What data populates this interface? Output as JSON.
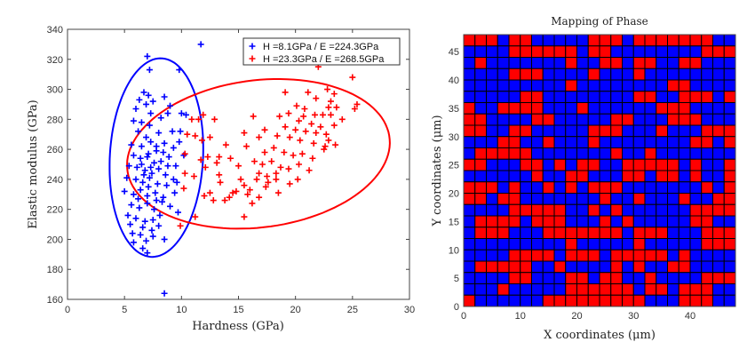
{
  "chart_data": [
    {
      "type": "scatter",
      "title": "",
      "xlabel": "Hardness (GPa)",
      "ylabel": "Elastic modulus (GPa)",
      "xlim": [
        0,
        30
      ],
      "ylim": [
        160,
        340
      ],
      "xticks": [
        "0",
        "5",
        "10",
        "15",
        "20",
        "25",
        "30"
      ],
      "yticks": [
        "160",
        "180",
        "200",
        "220",
        "240",
        "260",
        "280",
        "300",
        "320",
        "340"
      ],
      "legend_position": "top-right",
      "series": [
        {
          "name": "H =8.1GPa / E =224.3GPa",
          "color": "#0000ff",
          "marker": "+",
          "ellipse": {
            "cx": 7.8,
            "cy": 254.5,
            "ax": 4.0,
            "ay": -9.5,
            "bx": 0.95,
            "by": 65.5
          },
          "points": [
            [
              11.7,
              330
            ],
            [
              7,
              322
            ],
            [
              7.2,
              313
            ],
            [
              9.8,
              313
            ],
            [
              6.7,
              298
            ],
            [
              7.1,
              296
            ],
            [
              8.5,
              295
            ],
            [
              6.3,
              293
            ],
            [
              7.5,
              292
            ],
            [
              6.9,
              290
            ],
            [
              9.0,
              289
            ],
            [
              6.0,
              287
            ],
            [
              7.3,
              284
            ],
            [
              10.0,
              284
            ],
            [
              8.8,
              284
            ],
            [
              5.8,
              279
            ],
            [
              6.5,
              278
            ],
            [
              7.2,
              276
            ],
            [
              8.2,
              281
            ],
            [
              10.4,
              283
            ],
            [
              6.2,
              272
            ],
            [
              6.9,
              268
            ],
            [
              8.0,
              271
            ],
            [
              9.2,
              272
            ],
            [
              9.9,
              272
            ],
            [
              5.6,
              263
            ],
            [
              6.5,
              262
            ],
            [
              7.3,
              265
            ],
            [
              7.8,
              262
            ],
            [
              8.4,
              258
            ],
            [
              9.3,
              261
            ],
            [
              9.8,
              265
            ],
            [
              5.8,
              256
            ],
            [
              6.4,
              254
            ],
            [
              7.1,
              257
            ],
            [
              7.6,
              251
            ],
            [
              8.2,
              252
            ],
            [
              8.9,
              255
            ],
            [
              10.2,
              256
            ],
            [
              5.4,
              249
            ],
            [
              6.1,
              248
            ],
            [
              6.8,
              246
            ],
            [
              7.4,
              244
            ],
            [
              8.0,
              247
            ],
            [
              8.6,
              243
            ],
            [
              9.5,
              249
            ],
            [
              5.2,
              241
            ],
            [
              6.0,
              240
            ],
            [
              6.6,
              238
            ],
            [
              7.2,
              241
            ],
            [
              7.9,
              237
            ],
            [
              8.7,
              236
            ],
            [
              9.3,
              240
            ],
            [
              5.0,
              232
            ],
            [
              5.8,
              230
            ],
            [
              6.4,
              233
            ],
            [
              7.0,
              229
            ],
            [
              7.7,
              231
            ],
            [
              8.4,
              228
            ],
            [
              9.4,
              231
            ],
            [
              5.6,
              223
            ],
            [
              6.3,
              221
            ],
            [
              7.0,
              224
            ],
            [
              7.6,
              220
            ],
            [
              8.3,
              225
            ],
            [
              9.0,
              222
            ],
            [
              5.3,
              216
            ],
            [
              6.0,
              214
            ],
            [
              6.8,
              212
            ],
            [
              7.5,
              213
            ],
            [
              8.1,
              216
            ],
            [
              9.7,
              218
            ],
            [
              5.5,
              210
            ],
            [
              6.6,
              208
            ],
            [
              7.4,
              206
            ],
            [
              8.0,
              209
            ],
            [
              5.7,
              204
            ],
            [
              6.4,
              203
            ],
            [
              7.5,
              202
            ],
            [
              5.8,
              198
            ],
            [
              6.9,
              199
            ],
            [
              8.5,
              200
            ],
            [
              6.6,
              194
            ],
            [
              7.0,
              191
            ],
            [
              8.5,
              164
            ],
            [
              7.0,
              255
            ],
            [
              6.5,
              250
            ],
            [
              7.3,
              248
            ],
            [
              6.7,
              243
            ],
            [
              7.8,
              259
            ],
            [
              8.5,
              264
            ],
            [
              7.1,
              235
            ],
            [
              6.2,
              227
            ],
            [
              7.8,
              226
            ],
            [
              8.8,
              249
            ],
            [
              9.6,
              238
            ]
          ]
        },
        {
          "name": "H =23.3GPa / E =268.5GPa",
          "color": "#ff0000",
          "marker": "+",
          "ellipse": {
            "cx": 16.75,
            "cy": 257,
            "ax": 11.1,
            "ay": -6,
            "bx": 3.1,
            "by": 49.5
          },
          "points": [
            [
              22,
              315
            ],
            [
              25,
              308
            ],
            [
              25.4,
              290
            ],
            [
              25.2,
              287
            ],
            [
              19.1,
              298
            ],
            [
              22.8,
              300
            ],
            [
              21.1,
              298
            ],
            [
              23.4,
              297
            ],
            [
              21.8,
              294
            ],
            [
              23.1,
              292
            ],
            [
              20.1,
              289
            ],
            [
              20.8,
              287
            ],
            [
              22.9,
              288
            ],
            [
              23.6,
              288
            ],
            [
              19.4,
              284
            ],
            [
              20.7,
              282
            ],
            [
              21.7,
              283
            ],
            [
              22.4,
              283
            ],
            [
              23.1,
              283
            ],
            [
              24.1,
              280
            ],
            [
              16.3,
              282
            ],
            [
              18.6,
              282
            ],
            [
              10.9,
              280
            ],
            [
              11.5,
              280
            ],
            [
              12.9,
              280
            ],
            [
              11.9,
              283
            ],
            [
              20.3,
              279
            ],
            [
              21.4,
              277
            ],
            [
              22.2,
              275
            ],
            [
              23.4,
              276
            ],
            [
              19.1,
              275
            ],
            [
              20.0,
              273
            ],
            [
              20.9,
              272
            ],
            [
              21.8,
              271
            ],
            [
              22.7,
              270
            ],
            [
              17.3,
              273
            ],
            [
              18.4,
              269
            ],
            [
              19.5,
              268
            ],
            [
              20.4,
              266
            ],
            [
              21.6,
              264
            ],
            [
              22.6,
              262
            ],
            [
              23.5,
              263
            ],
            [
              10.5,
              270
            ],
            [
              11.2,
              269
            ],
            [
              11.8,
              266
            ],
            [
              12.5,
              268
            ],
            [
              15.5,
              271
            ],
            [
              16.8,
              268
            ],
            [
              13.9,
              263
            ],
            [
              15.7,
              262
            ],
            [
              17.3,
              258
            ],
            [
              18.1,
              261
            ],
            [
              19.0,
              258
            ],
            [
              19.8,
              256
            ],
            [
              20.6,
              257
            ],
            [
              21.5,
              254
            ],
            [
              22.5,
              260
            ],
            [
              22.9,
              266
            ],
            [
              10.3,
              257
            ],
            [
              11.7,
              253
            ],
            [
              12.3,
              255
            ],
            [
              13.3,
              255
            ],
            [
              14.3,
              254
            ],
            [
              15.0,
              249
            ],
            [
              16.4,
              252
            ],
            [
              17.1,
              250
            ],
            [
              17.9,
              252
            ],
            [
              18.7,
              248
            ],
            [
              19.4,
              247
            ],
            [
              20.3,
              250
            ],
            [
              21.2,
              246
            ],
            [
              12.1,
              248
            ],
            [
              13.1,
              251
            ],
            [
              16.8,
              244
            ],
            [
              17.5,
              242
            ],
            [
              18.3,
              244
            ],
            [
              10.3,
              244
            ],
            [
              11.1,
              242
            ],
            [
              13.3,
              243
            ],
            [
              15.2,
              240
            ],
            [
              16.6,
              240
            ],
            [
              17.6,
              238
            ],
            [
              18.3,
              240
            ],
            [
              19.5,
              237
            ],
            [
              20.2,
              240
            ],
            [
              13.4,
              238
            ],
            [
              15.5,
              236
            ],
            [
              17.4,
              235
            ],
            [
              10.2,
              234
            ],
            [
              14.8,
              232
            ],
            [
              15.8,
              230
            ],
            [
              12.0,
              229
            ],
            [
              12.5,
              231
            ],
            [
              14.2,
              228
            ],
            [
              16.8,
              228
            ],
            [
              18.5,
              231
            ],
            [
              12.8,
              226
            ],
            [
              13.8,
              226
            ],
            [
              16.2,
              224
            ],
            [
              11.2,
              215
            ],
            [
              15.5,
              215
            ],
            [
              9.9,
              209
            ],
            [
              14.5,
              231
            ],
            [
              16.0,
              233
            ]
          ]
        }
      ]
    },
    {
      "type": "heatmap",
      "title": "Mapping of Phase",
      "xlabel": "X coordinates (μm)",
      "ylabel": "Y coordinates (μm)",
      "xlim": [
        0,
        48
      ],
      "ylim": [
        0,
        48
      ],
      "cell_size": 2,
      "xticks": [
        "0",
        "10",
        "20",
        "30",
        "40"
      ],
      "yticks": [
        "0",
        "5",
        "10",
        "15",
        "20",
        "25",
        "30",
        "35",
        "40",
        "45"
      ],
      "colors": {
        "R": "#ff0000",
        "B": "#0000ff"
      },
      "grid_top_to_bottom": [
        "RRRBRRBBBBBRRRBRRRRRRRBB",
        "BBBBRRRRRRBRRBBBBBBBBRRR",
        "BRBBBBBBBRBBRRBRRBBRRBBB",
        "BBBBRRRBBBBRBBBRBBBBBBBB",
        "BBBBBBBBBRBBBBBBBBRRBBBB",
        "BBBBBRRBBBBBBBBRRBBRRRBR",
        "RBBRRRRBBBRBBBBBBRRRBBBB",
        "RRBBBBRRBBBBBRRBBBRRRBBB",
        "RRBBRRBBBBBRRRBBBRBBBRRR",
        "BBBRRBBRBBBRBBBBBBBBRRBR",
        "BRRRRRBBBBBBBRBBRBBBBBBB",
        "RRBBBRRBRBRRBBRRRRRBRBBR",
        "BBBBBBRBBRRBBBRRBRRBRBBR",
        "RRRBRBBRBRBRRRBBBBBBBRBR",
        "RRBRRBBBBBBBRBBRBBBRBBRR",
        "BBBBRRRRRBBRBRBBBBBBRRRR",
        "BRRRRBRRRBBBRBRBBBBBRRBB",
        "BRRRBBBRRRRRRRBRRRBBBRRR",
        "BBBBBBBBBRBBBBBRBBBBBRRR",
        "BBBBRRRRBRRRBRRRRRBRBBBB",
        "BRRRRRBBRBBBBRBRBBRRBBBB",
        "BBBBRRBBBRRBRRBBRBBBBRRR",
        "BBBRBBBBBRRRRRRBRRBRRRBB",
        "RBBBBBBRRRRRRRRRBBBRRRBB"
      ]
    }
  ]
}
